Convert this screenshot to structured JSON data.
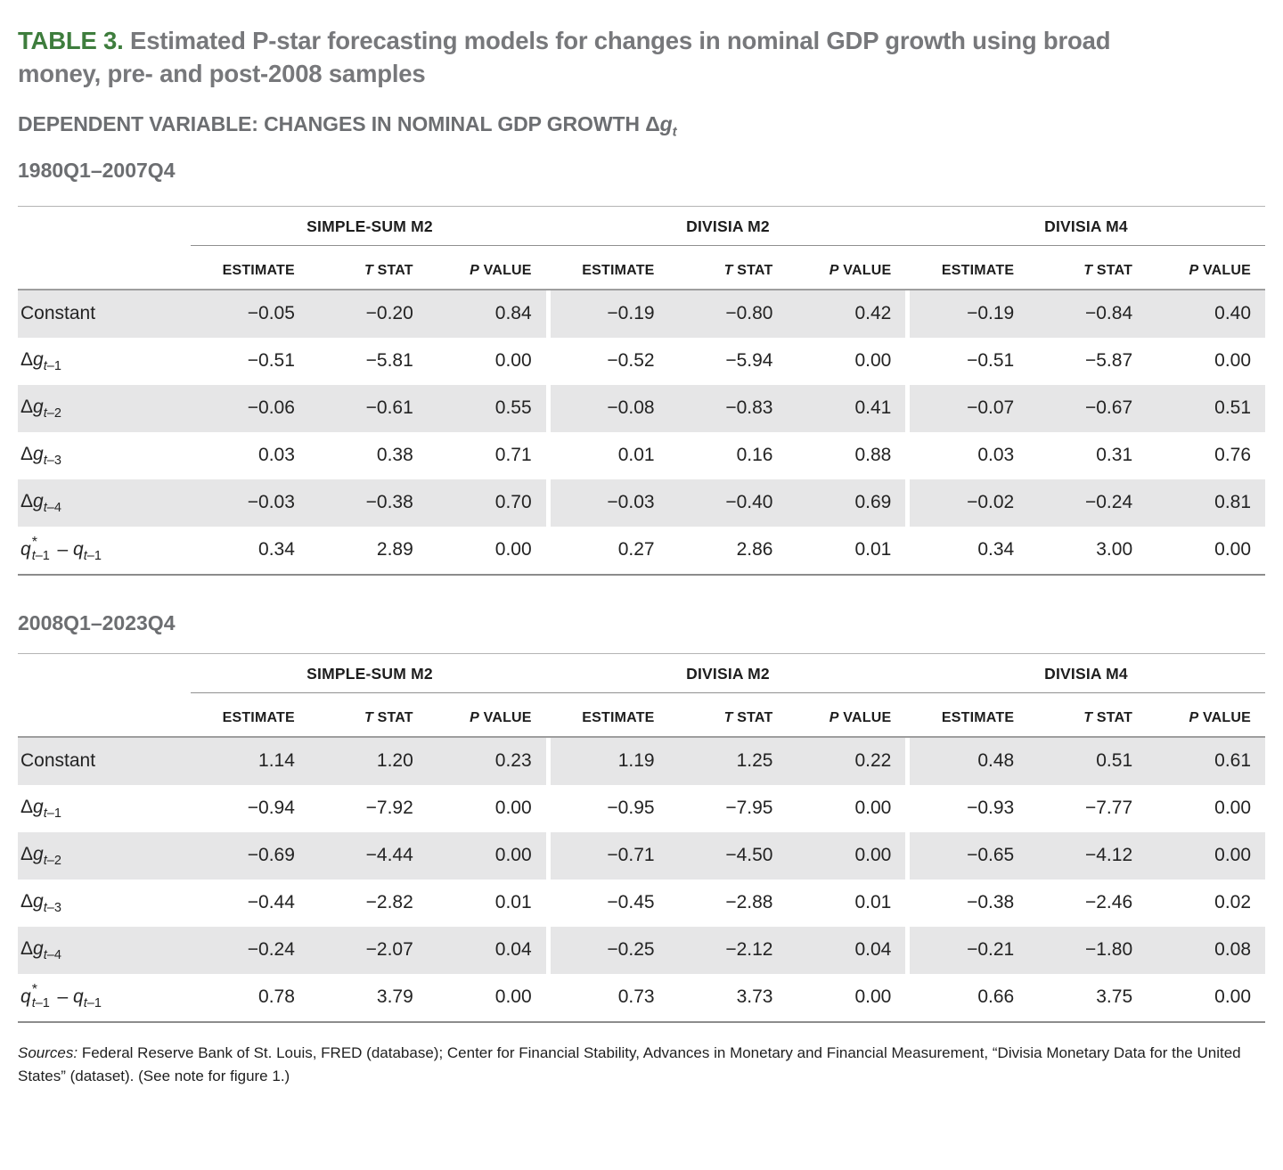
{
  "title": {
    "number": "TABLE 3.",
    "lines": [
      "Estimated P-star forecasting models for changes in nominal GDP growth using broad",
      "money, pre- and post-2008 samples"
    ]
  },
  "dependent_variable": {
    "text": "DEPENDENT VARIABLE: CHANGES IN NOMINAL GDP GROWTH ",
    "math": {
      "delta": "Δ",
      "var": "g",
      "sub": "t"
    }
  },
  "colors": {
    "accent_green": "#3e7d3d",
    "title_gray": "#77787b",
    "heading_gray": "#6c6e71",
    "row_shade": "#e6e6e7",
    "rule_light": "#b4b4b4",
    "rule_dark": "#8c8c8c",
    "body_text": "#232323"
  },
  "table": {
    "groups": [
      "SIMPLE-SUM M2",
      "DIVISIA M2",
      "DIVISIA M4"
    ],
    "columns": [
      {
        "it": "",
        "txt": "ESTIMATE"
      },
      {
        "it": "T",
        "txt": " STAT"
      },
      {
        "it": "P",
        "txt": " VALUE"
      }
    ],
    "row_labels": [
      {
        "type": "plain",
        "text": "Constant"
      },
      {
        "type": "lag",
        "delta": "Δ",
        "var": "g",
        "subit": "t",
        "subrest": "–1"
      },
      {
        "type": "lag",
        "delta": "Δ",
        "var": "g",
        "subit": "t",
        "subrest": "–2"
      },
      {
        "type": "lag",
        "delta": "Δ",
        "var": "g",
        "subit": "t",
        "subrest": "–3"
      },
      {
        "type": "lag",
        "delta": "Δ",
        "var": "g",
        "subit": "t",
        "subrest": "–4"
      },
      {
        "type": "qdiff",
        "var": "q",
        "sup": "*",
        "subit": "t",
        "subrest": "–1",
        "minus": " – ",
        "var2": "q",
        "sub2it": "t",
        "sub2rest": "–1"
      }
    ],
    "sections": [
      {
        "period": "1980Q1–2007Q4",
        "rows": [
          [
            "−0.05",
            "−0.20",
            "0.84",
            "−0.19",
            "−0.80",
            "0.42",
            "−0.19",
            "−0.84",
            "0.40"
          ],
          [
            "−0.51",
            "−5.81",
            "0.00",
            "−0.52",
            "−5.94",
            "0.00",
            "−0.51",
            "−5.87",
            "0.00"
          ],
          [
            "−0.06",
            "−0.61",
            "0.55",
            "−0.08",
            "−0.83",
            "0.41",
            "−0.07",
            "−0.67",
            "0.51"
          ],
          [
            "0.03",
            "0.38",
            "0.71",
            "0.01",
            "0.16",
            "0.88",
            "0.03",
            "0.31",
            "0.76"
          ],
          [
            "−0.03",
            "−0.38",
            "0.70",
            "−0.03",
            "−0.40",
            "0.69",
            "−0.02",
            "−0.24",
            "0.81"
          ],
          [
            "0.34",
            "2.89",
            "0.00",
            "0.27",
            "2.86",
            "0.01",
            "0.34",
            "3.00",
            "0.00"
          ]
        ]
      },
      {
        "period": "2008Q1–2023Q4",
        "rows": [
          [
            "1.14",
            "1.20",
            "0.23",
            "1.19",
            "1.25",
            "0.22",
            "0.48",
            "0.51",
            "0.61"
          ],
          [
            "−0.94",
            "−7.92",
            "0.00",
            "−0.95",
            "−7.95",
            "0.00",
            "−0.93",
            "−7.77",
            "0.00"
          ],
          [
            "−0.69",
            "−4.44",
            "0.00",
            "−0.71",
            "−4.50",
            "0.00",
            "−0.65",
            "−4.12",
            "0.00"
          ],
          [
            "−0.44",
            "−2.82",
            "0.01",
            "−0.45",
            "−2.88",
            "0.01",
            "−0.38",
            "−2.46",
            "0.02"
          ],
          [
            "−0.24",
            "−2.07",
            "0.04",
            "−0.25",
            "−2.12",
            "0.04",
            "−0.21",
            "−1.80",
            "0.08"
          ],
          [
            "0.78",
            "3.79",
            "0.00",
            "0.73",
            "3.73",
            "0.00",
            "0.66",
            "3.75",
            "0.00"
          ]
        ]
      }
    ]
  },
  "sources": {
    "label": "Sources:",
    "text": " Federal Reserve Bank of St. Louis, FRED (database); Center for Financial Stability, Advances in Monetary and Financial Measurement, “Divisia Monetary Data for the United States” (dataset). (See note for figure 1.)"
  }
}
